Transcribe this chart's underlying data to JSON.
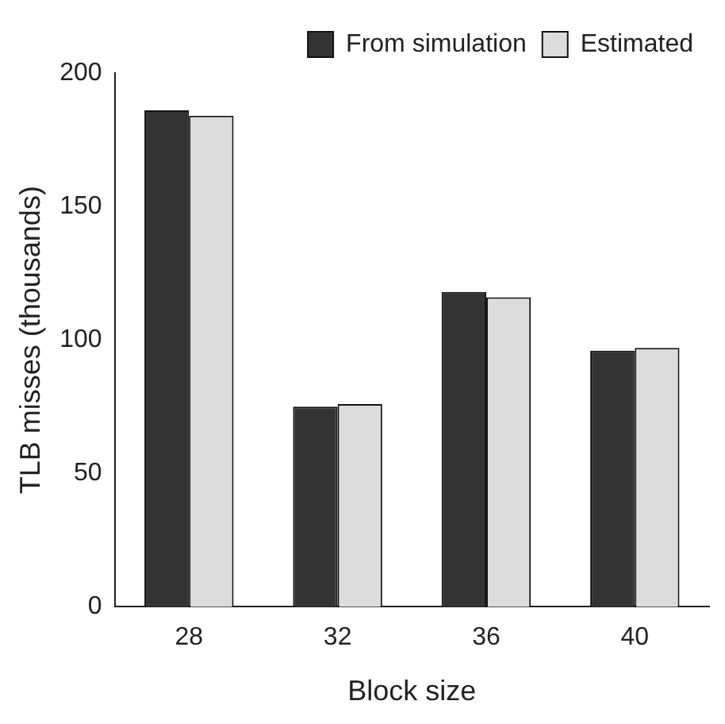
{
  "chart_data": {
    "type": "bar",
    "xlabel": "Block size",
    "ylabel": "TLB misses (thousands)",
    "categories": [
      "28",
      "32",
      "36",
      "40"
    ],
    "series": [
      {
        "name": "From simulation",
        "color": "#333333",
        "values": [
          186,
          75,
          118,
          96
        ]
      },
      {
        "name": "Estimated",
        "color": "#dcdcdc",
        "values": [
          184,
          76,
          116,
          97
        ]
      }
    ],
    "ylim": [
      0,
      200
    ],
    "yticks": [
      0,
      50,
      100,
      150,
      200
    ],
    "grid": false,
    "legend": "top right"
  }
}
